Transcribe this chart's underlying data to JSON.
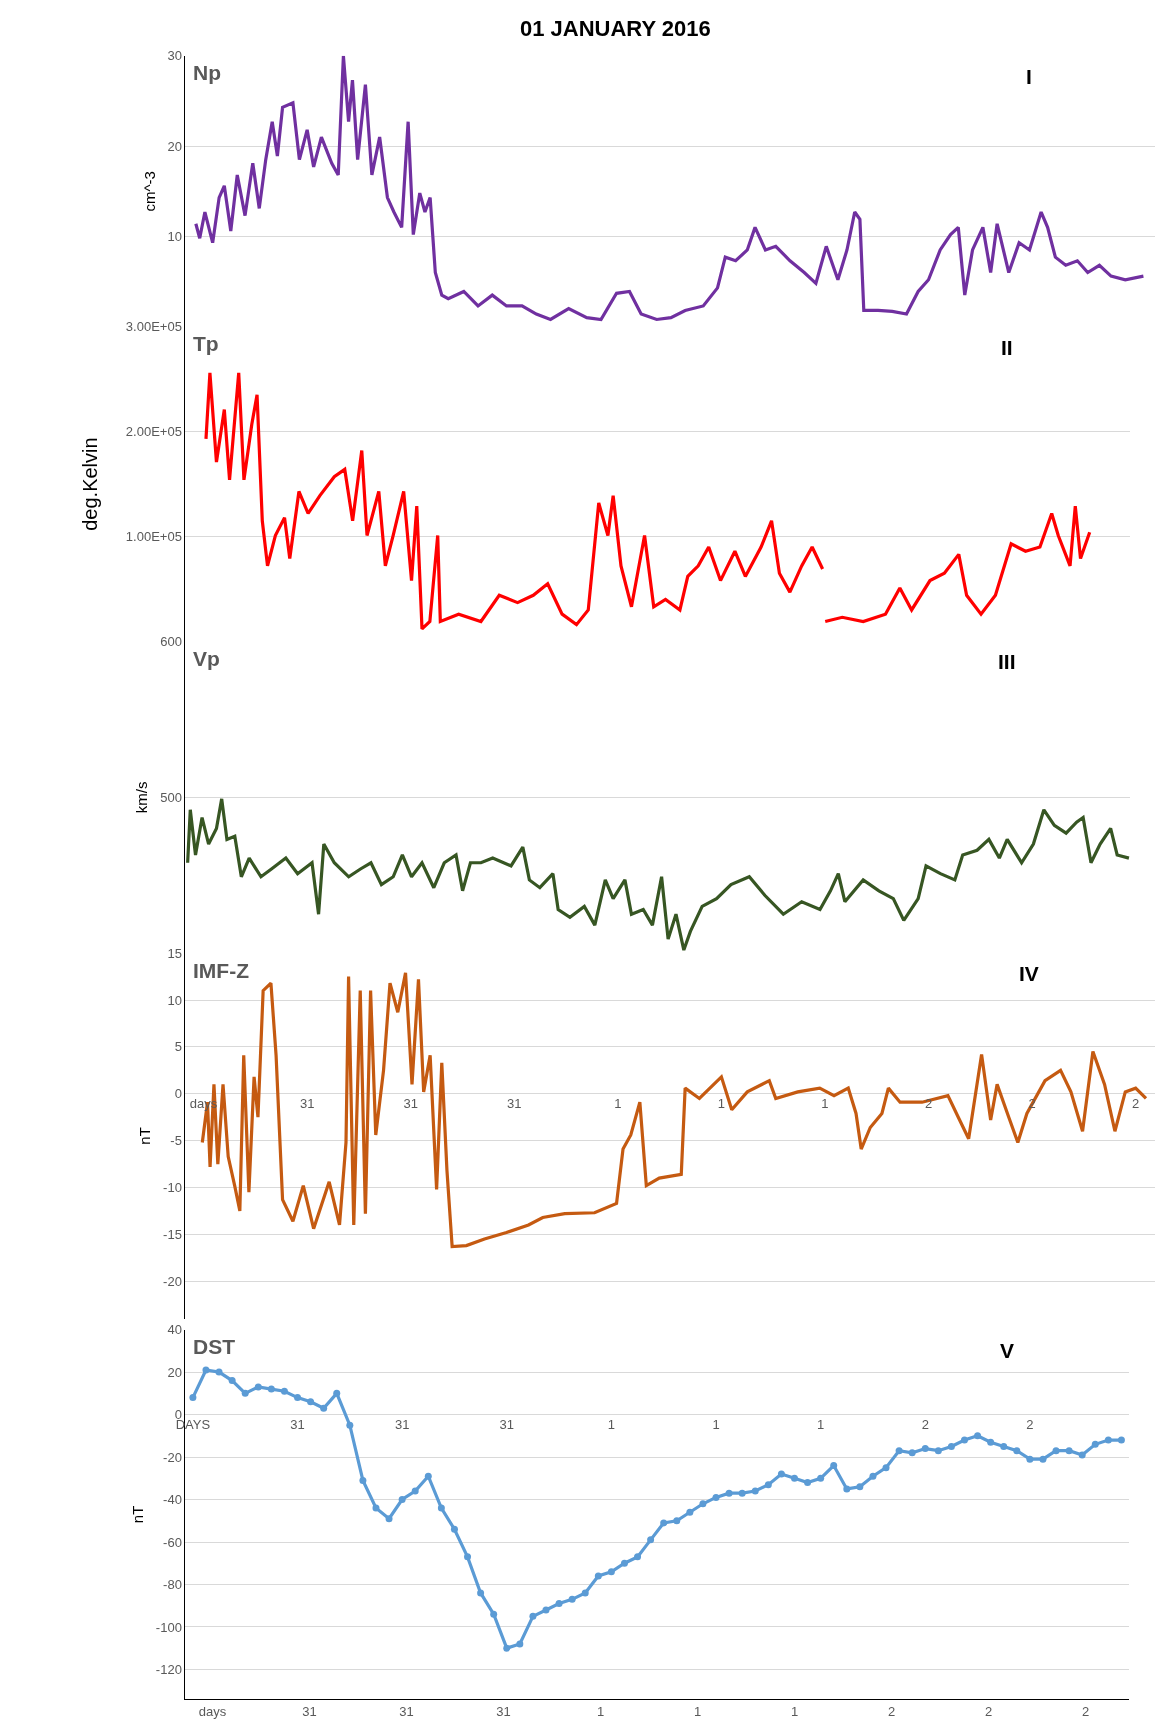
{
  "chart_data": [
    {
      "type": "line",
      "title": "01 JANUARY 2016",
      "ylabel": "cm^-3",
      "annotations": [
        "Np",
        "I"
      ],
      "grid": "y",
      "tick_labels": "y",
      "marker": "none",
      "line_style": "solid",
      "xlim": [
        "2015-12-30T14:36",
        "2016-01-02T17:30"
      ],
      "ylim": [
        0,
        30
      ],
      "yticks": [
        10,
        20,
        30
      ],
      "series": [
        {
          "color": "#7030a0",
          "x": [
            "2015-12-30T15:24",
            "2015-12-30T15:42",
            "2015-12-30T16:06",
            "2015-12-30T16:42",
            "2015-12-30T17:12",
            "2015-12-30T17:36",
            "2015-12-30T18:06",
            "2015-12-30T18:36",
            "2015-12-30T19:12",
            "2015-12-30T19:48",
            "2015-12-30T20:18",
            "2015-12-30T20:48",
            "2015-12-30T21:18",
            "2015-12-30T21:42",
            "2015-12-30T22:06",
            "2015-12-30T22:54",
            "2015-12-30T23:24",
            "2015-12-31T00:00",
            "2015-12-31T00:30",
            "2015-12-31T01:06",
            "2015-12-31T01:54",
            "2015-12-31T02:24",
            "2015-12-31T02:48",
            "2015-12-31T03:12",
            "2015-12-31T03:30",
            "2015-12-31T03:54",
            "2015-12-31T04:30",
            "2015-12-31T05:00",
            "2015-12-31T05:36",
            "2015-12-31T06:12",
            "2015-12-31T06:42",
            "2015-12-31T07:18",
            "2015-12-31T07:48",
            "2015-12-31T08:12",
            "2015-12-31T08:42",
            "2015-12-31T09:06",
            "2015-12-31T09:30",
            "2015-12-31T09:54",
            "2015-12-31T10:24",
            "2015-12-31T10:54",
            "2015-12-31T12:06",
            "2015-12-31T13:12",
            "2015-12-31T14:18",
            "2015-12-31T15:24",
            "2015-12-31T16:36",
            "2015-12-31T17:42",
            "2015-12-31T18:48",
            "2015-12-31T20:12",
            "2015-12-31T21:36",
            "2015-12-31T22:42",
            "2015-12-31T23:54",
            "2016-01-01T00:54",
            "2016-01-01T01:48",
            "2016-01-01T03:00",
            "2016-01-01T04:06",
            "2016-01-01T05:12",
            "2016-01-01T06:36",
            "2016-01-01T07:42",
            "2016-01-01T08:18",
            "2016-01-01T09:06",
            "2016-01-01T10:00",
            "2016-01-01T10:36",
            "2016-01-01T11:24",
            "2016-01-01T12:12",
            "2016-01-01T13:18",
            "2016-01-01T14:24",
            "2016-01-01T15:18",
            "2016-01-01T16:06",
            "2016-01-01T17:00",
            "2016-01-01T17:42",
            "2016-01-01T18:18",
            "2016-01-01T18:42",
            "2016-01-01T19:00",
            "2016-01-01T20:06",
            "2016-01-01T21:12",
            "2016-01-01T22:18",
            "2016-01-01T23:12",
            "2016-01-02T00:00",
            "2016-01-02T00:54",
            "2016-01-02T01:42",
            "2016-01-02T02:18",
            "2016-01-02T02:48",
            "2016-01-02T03:24",
            "2016-01-02T04:12",
            "2016-01-02T04:48",
            "2016-01-02T05:18",
            "2016-01-02T06:12",
            "2016-01-02T07:00",
            "2016-01-02T07:48",
            "2016-01-02T08:42",
            "2016-01-02T09:12",
            "2016-01-02T09:48",
            "2016-01-02T10:36",
            "2016-01-02T11:30",
            "2016-01-02T12:18",
            "2016-01-02T13:12",
            "2016-01-02T14:06",
            "2016-01-02T15:12",
            "2016-01-02T16:36"
          ],
          "values": [
            11.4,
            9.8,
            12.7,
            9.3,
            14.3,
            15.6,
            10.6,
            16.8,
            12.3,
            18.1,
            13.1,
            18.5,
            22.7,
            18.9,
            24.3,
            24.8,
            18.5,
            21.8,
            17.7,
            21.0,
            18.1,
            16.8,
            30,
            22.7,
            27.3,
            18.5,
            26.8,
            16.8,
            21.0,
            14.3,
            12.7,
            11.0,
            22.7,
            10.2,
            14.8,
            12.7,
            14.3,
            6.0,
            3.5,
            3.1,
            3.9,
            2.3,
            3.5,
            2.3,
            2.3,
            1.4,
            0.8,
            2.0,
            1.0,
            0.8,
            3.7,
            3.9,
            1.4,
            0.8,
            1.0,
            1.8,
            2.3,
            4.3,
            7.7,
            7.3,
            8.5,
            11.0,
            8.5,
            8.9,
            7.3,
            6.0,
            4.8,
            8.9,
            5.2,
            8.5,
            12.7,
            11.9,
            1.8,
            1.8,
            1.7,
            1.4,
            3.9,
            5.2,
            8.5,
            10.2,
            11.0,
            3.5,
            8.5,
            11.0,
            6.0,
            11.4,
            6.0,
            9.3,
            8.5,
            12.7,
            11.0,
            7.7,
            6.8,
            7.3,
            6.0,
            6.8,
            5.6,
            5.2,
            5.6
          ]
        }
      ]
    },
    {
      "type": "line",
      "ylabel": "deg.Kelvin",
      "annotations": [
        "Tp",
        "II"
      ],
      "grid": "y",
      "tick_labels": "y",
      "marker": "none",
      "line_style": "solid",
      "xlim": [
        "2015-12-30T15:26",
        "2016-01-02T15:36"
      ],
      "ylim": [
        0,
        300000
      ],
      "yticks": [
        {
          "value": 100000,
          "label": "1.00E+05"
        },
        {
          "value": 200000,
          "label": "2.00E+05"
        },
        {
          "value": 300000,
          "label": "3.00E+05"
        }
      ],
      "series": [
        {
          "color": "#ff0000",
          "x": [
            "2015-12-30T17:00",
            "2015-12-30T17:18",
            "2015-12-30T17:48",
            "2015-12-30T18:24",
            "2015-12-30T18:48",
            "2015-12-30T19:30",
            "2015-12-30T19:54",
            "2015-12-30T20:30",
            "2015-12-30T20:54",
            "2015-12-30T21:18",
            "2015-12-30T21:42",
            "2015-12-30T22:18",
            "2015-12-30T23:00",
            "2015-12-30T23:24",
            "2015-12-31T00:06",
            "2015-12-31T00:48",
            "2015-12-31T01:42",
            "2015-12-31T02:48",
            "2015-12-31T03:36",
            "2015-12-31T04:12",
            "2015-12-31T04:54",
            "2015-12-31T05:18",
            "2015-12-31T06:12",
            "2015-12-31T06:42",
            "2015-12-31T07:18",
            "2015-12-31T08:06",
            "2015-12-31T08:42",
            "2015-12-31T09:06",
            "2015-12-31T09:30",
            "2015-12-31T10:06",
            "2015-12-31T10:42",
            "2015-12-31T10:54",
            "2015-12-31T12:18",
            "2015-12-31T14:00",
            "2015-12-31T15:24",
            "2015-12-31T16:48",
            "2015-12-31T18:00",
            "2015-12-31T19:06",
            "2015-12-31T20:12",
            "2015-12-31T21:18",
            "2015-12-31T22:12",
            "2015-12-31T23:00",
            "2015-12-31T23:42",
            "2016-01-01T00:06",
            "2016-01-01T00:42",
            "2016-01-01T01:30",
            "2016-01-01T02:30",
            "2016-01-01T03:12",
            "2016-01-01T04:06",
            "2016-01-01T05:12",
            "2016-01-01T05:48",
            "2016-01-01T06:36",
            "2016-01-01T07:24",
            "2016-01-01T08:18",
            "2016-01-01T09:24",
            "2016-01-01T10:12",
            "2016-01-01T11:24",
            "2016-01-01T12:12",
            "2016-01-01T12:48",
            "2016-01-01T13:36",
            "2016-01-01T14:30",
            "2016-01-01T15:18",
            "2016-01-01T16:06",
            "2016-01-01T16:12",
            "2016-01-01T16:18",
            "2016-01-01T17:36",
            "2016-01-01T19:12",
            "2016-01-01T20:54",
            "2016-01-01T22:00",
            "2016-01-01T22:54",
            "2016-01-02T00:18",
            "2016-01-02T01:24",
            "2016-01-02T02:30",
            "2016-01-02T03:06",
            "2016-01-02T04:12",
            "2016-01-02T05:18",
            "2016-01-02T06:30",
            "2016-01-02T07:36",
            "2016-01-02T08:42",
            "2016-01-02T09:36",
            "2016-01-02T10:06",
            "2016-01-02T11:00",
            "2016-01-02T11:24",
            "2016-01-02T11:48",
            "2016-01-02T12:30"
          ],
          "values": [
            193000,
            256000,
            171000,
            221000,
            154000,
            256000,
            154000,
            207000,
            235000,
            115000,
            72000,
            101000,
            118000,
            79000,
            143000,
            122000,
            139000,
            157000,
            164000,
            115000,
            182000,
            101000,
            143000,
            72000,
            101000,
            143000,
            58000,
            129000,
            12000,
            19000,
            101000,
            19000,
            26000,
            19000,
            44000,
            37000,
            44000,
            55000,
            26000,
            16000,
            30000,
            132000,
            101000,
            139000,
            72000,
            33000,
            101000,
            33000,
            40000,
            30000,
            62000,
            72000,
            90000,
            58000,
            86000,
            62000,
            90000,
            115000,
            65000,
            47000,
            72000,
            90000,
            69000,
            null,
            19000,
            23000,
            19000,
            26000,
            51000,
            30000,
            58000,
            65000,
            83000,
            44000,
            26000,
            44000,
            93000,
            86000,
            90000,
            122000,
            101000,
            72000,
            129000,
            79000,
            104000
          ]
        }
      ]
    },
    {
      "type": "line",
      "ylabel": "km/s",
      "annotations": [
        "Vp",
        "III"
      ],
      "grid": "y",
      "tick_labels": "y",
      "marker": "none",
      "line_style": "solid",
      "xlim": [
        "2015-12-30T15:26",
        "2016-01-02T15:36"
      ],
      "ylim": [
        400,
        600
      ],
      "yticks": [
        500,
        600
      ],
      "series": [
        {
          "color": "#375623",
          "x": [
            "2015-12-30T15:36",
            "2015-12-30T15:48",
            "2015-12-30T16:12",
            "2015-12-30T16:42",
            "2015-12-30T17:12",
            "2015-12-30T17:48",
            "2015-12-30T18:12",
            "2015-12-30T18:36",
            "2015-12-30T19:12",
            "2015-12-30T19:42",
            "2015-12-30T20:18",
            "2015-12-30T21:12",
            "2015-12-30T22:00",
            "2015-12-30T23:06",
            "2015-12-31T00:00",
            "2015-12-31T01:06",
            "2015-12-31T01:36",
            "2015-12-31T02:00",
            "2015-12-31T02:48",
            "2015-12-31T03:54",
            "2015-12-31T04:48",
            "2015-12-31T05:36",
            "2015-12-31T06:24",
            "2015-12-31T07:18",
            "2015-12-31T08:00",
            "2015-12-31T08:42",
            "2015-12-31T09:30",
            "2015-12-31T10:24",
            "2015-12-31T11:12",
            "2015-12-31T12:06",
            "2015-12-31T12:36",
            "2015-12-31T13:12",
            "2015-12-31T14:00",
            "2015-12-31T14:54",
            "2015-12-31T16:18",
            "2015-12-31T17:12",
            "2015-12-31T17:42",
            "2015-12-31T18:30",
            "2015-12-31T19:30",
            "2015-12-31T19:54",
            "2015-12-31T20:48",
            "2015-12-31T21:54",
            "2015-12-31T22:42",
            "2015-12-31T23:30",
            "2016-01-01T00:06",
            "2016-01-01T01:00",
            "2016-01-01T01:30",
            "2016-01-01T02:24",
            "2016-01-01T03:06",
            "2016-01-01T03:48",
            "2016-01-01T04:18",
            "2016-01-01T04:54",
            "2016-01-01T05:30",
            "2016-01-01T06:00",
            "2016-01-01T06:54",
            "2016-01-01T08:00",
            "2016-01-01T09:06",
            "2016-01-01T10:30",
            "2016-01-01T11:42",
            "2016-01-01T13:06",
            "2016-01-01T14:30",
            "2016-01-01T15:54",
            "2016-01-01T16:42",
            "2016-01-01T17:18",
            "2016-01-01T17:48",
            "2016-01-01T19:12",
            "2016-01-01T20:24",
            "2016-01-01T21:30",
            "2016-01-01T22:18",
            "2016-01-01T23:24",
            "2016-01-02T00:00",
            "2016-01-02T01:06",
            "2016-01-02T02:12",
            "2016-01-02T02:48",
            "2016-01-02T03:54",
            "2016-01-02T04:48",
            "2016-01-02T05:36",
            "2016-01-02T06:12",
            "2016-01-02T07:18",
            "2016-01-02T08:12",
            "2016-01-02T09:00",
            "2016-01-02T09:48",
            "2016-01-02T10:42",
            "2016-01-02T11:30",
            "2016-01-02T12:00",
            "2016-01-02T12:36",
            "2016-01-02T13:18",
            "2016-01-02T14:06",
            "2016-01-02T14:36",
            "2016-01-02T15:30"
          ],
          "values": [
            458,
            492,
            463,
            487,
            470,
            480,
            499,
            473,
            475,
            449,
            461,
            449,
            454,
            461,
            451,
            458,
            425,
            470,
            458,
            449,
            454,
            458,
            444,
            449,
            463,
            449,
            458,
            442,
            458,
            463,
            440,
            458,
            458,
            461,
            456,
            468,
            447,
            442,
            451,
            428,
            423,
            430,
            418,
            447,
            435,
            447,
            425,
            428,
            418,
            449,
            409,
            425,
            402,
            414,
            430,
            435,
            444,
            449,
            437,
            425,
            433,
            428,
            440,
            451,
            433,
            447,
            440,
            435,
            421,
            435,
            456,
            451,
            447,
            463,
            466,
            473,
            461,
            473,
            458,
            470,
            492,
            482,
            477,
            484,
            487,
            458,
            470,
            480,
            463,
            461
          ]
        }
      ]
    },
    {
      "type": "line",
      "ylabel": "nT",
      "annotations": [
        "IMF-Z",
        "IV"
      ],
      "grid": "y",
      "marker": "none",
      "line_style": "solid",
      "xlim": [
        "2015-12-30T14:36",
        "2016-01-02T17:30"
      ],
      "xticks": [
        {
          "value": "2015-12-30T16:00",
          "label": "days"
        },
        {
          "value": "2015-12-31T00:00",
          "label": "31"
        },
        {
          "value": "2015-12-31T08:00",
          "label": "31"
        },
        {
          "value": "2015-12-31T16:00",
          "label": "31"
        },
        {
          "value": "2016-01-01T00:00",
          "label": "1"
        },
        {
          "value": "2016-01-01T08:00",
          "label": "1"
        },
        {
          "value": "2016-01-01T16:00",
          "label": "1"
        },
        {
          "value": "2016-01-02T00:00",
          "label": "2"
        },
        {
          "value": "2016-01-02T08:00",
          "label": "2"
        },
        {
          "value": "2016-01-02T16:00",
          "label": "2"
        }
      ],
      "ylim": [
        -24,
        15
      ],
      "yticks": [
        -20,
        -15,
        -10,
        -5,
        0,
        5,
        10,
        15
      ],
      "series": [
        {
          "color": "#c55a11",
          "x": [
            "2015-12-30T15:54",
            "2015-12-30T16:18",
            "2015-12-30T16:30",
            "2015-12-30T16:48",
            "2015-12-30T17:06",
            "2015-12-30T17:30",
            "2015-12-30T17:54",
            "2015-12-30T18:24",
            "2015-12-30T18:48",
            "2015-12-30T19:06",
            "2015-12-30T19:30",
            "2015-12-30T19:54",
            "2015-12-30T20:12",
            "2015-12-30T20:36",
            "2015-12-30T21:12",
            "2015-12-30T21:36",
            "2015-12-30T22:06",
            "2015-12-30T22:54",
            "2015-12-30T23:42",
            "2015-12-31T00:30",
            "2015-12-31T01:42",
            "2015-12-31T02:30",
            "2015-12-31T03:00",
            "2015-12-31T03:12",
            "2015-12-31T03:36",
            "2015-12-31T04:06",
            "2015-12-31T04:30",
            "2015-12-31T04:54",
            "2015-12-31T05:18",
            "2015-12-31T05:54",
            "2015-12-31T06:24",
            "2015-12-31T07:00",
            "2015-12-31T07:36",
            "2015-12-31T08:06",
            "2015-12-31T08:36",
            "2015-12-31T09:00",
            "2015-12-31T09:30",
            "2015-12-31T10:00",
            "2015-12-31T10:24",
            "2015-12-31T10:48",
            "2015-12-31T11:12",
            "2015-12-31T12:18",
            "2015-12-31T13:42",
            "2015-12-31T15:24",
            "2015-12-31T17:06",
            "2015-12-31T18:12",
            "2015-12-31T19:54",
            "2015-12-31T22:12",
            "2015-12-31T23:54",
            "2016-01-01T00:24",
            "2016-01-01T01:00",
            "2016-01-01T01:42",
            "2016-01-01T02:12",
            "2016-01-01T03:12",
            "2016-01-01T04:54",
            "2016-01-01T05:12",
            "2016-01-01T06:18",
            "2016-01-01T08:00",
            "2016-01-01T08:48",
            "2016-01-01T10:00",
            "2016-01-01T11:42",
            "2016-01-01T12:12",
            "2016-01-01T13:54",
            "2016-01-01T15:36",
            "2016-01-01T16:42",
            "2016-01-01T17:48",
            "2016-01-01T18:24",
            "2016-01-01T18:48",
            "2016-01-01T19:30",
            "2016-01-01T20:24",
            "2016-01-01T20:54",
            "2016-01-01T21:48",
            "2016-01-01T23:30",
            "2016-01-02T01:30",
            "2016-01-02T02:18",
            "2016-01-02T03:06",
            "2016-01-02T04:06",
            "2016-01-02T04:48",
            "2016-01-02T05:18",
            "2016-01-02T06:12",
            "2016-01-02T06:54",
            "2016-01-02T07:36",
            "2016-01-02T09:00",
            "2016-01-02T10:12",
            "2016-01-02T11:00",
            "2016-01-02T11:54",
            "2016-01-02T12:42",
            "2016-01-02T13:36",
            "2016-01-02T14:24",
            "2016-01-02T15:12",
            "2016-01-02T16:00",
            "2016-01-02T16:48"
          ],
          "values": [
            -5.2,
            -0.9,
            -7.8,
            1.0,
            -7.5,
            1.0,
            -6.7,
            -9.8,
            -12.5,
            4.1,
            -10.5,
            1.8,
            -2.5,
            11.0,
            11.8,
            4.1,
            -11.3,
            -13.6,
            -9.8,
            -14.4,
            -9.4,
            -14.0,
            -5.2,
            12.5,
            -14.0,
            11.0,
            -12.8,
            11.0,
            -4.4,
            2.5,
            11.8,
            8.7,
            12.9,
            1.0,
            12.2,
            0.2,
            4.1,
            -10.2,
            3.3,
            -8.2,
            -16.3,
            -16.2,
            -15.5,
            -14.8,
            -14.0,
            -13.2,
            -12.8,
            -12.7,
            -11.7,
            -5.9,
            -4.4,
            -0.9,
            -9.8,
            -9.0,
            -8.6,
            0.6,
            -0.5,
            1.8,
            -1.7,
            0.2,
            1.4,
            -0.5,
            0.2,
            0.6,
            -0.2,
            0.6,
            -2.1,
            -5.9,
            -3.6,
            -2.1,
            0.6,
            -0.9,
            -0.9,
            -0.2,
            -2.5,
            -4.8,
            4.2,
            -2.8,
            1.0,
            -2.5,
            -5.2,
            -2.1,
            1.4,
            2.5,
            0.2,
            -4.0,
            4.5,
            1.0,
            -4.0,
            0.2,
            0.6,
            -0.5
          ]
        }
      ]
    },
    {
      "type": "line",
      "ylabel": "nT",
      "annotations": [
        "DST",
        "V"
      ],
      "grid": "y",
      "marker": "circle",
      "line_style": "solid",
      "xlim": [
        "2015-12-30T15:26",
        "2016-01-02T15:36"
      ],
      "xticks": [
        {
          "value": "2015-12-30T16:00",
          "label": "DAYS"
        },
        {
          "value": "2015-12-31T00:00",
          "label": "31"
        },
        {
          "value": "2015-12-31T08:00",
          "label": "31"
        },
        {
          "value": "2015-12-31T16:00",
          "label": "31"
        },
        {
          "value": "2016-01-01T00:00",
          "label": "1"
        },
        {
          "value": "2016-01-01T08:00",
          "label": "1"
        },
        {
          "value": "2016-01-01T16:00",
          "label": "1"
        },
        {
          "value": "2016-01-02T00:00",
          "label": "2"
        },
        {
          "value": "2016-01-02T08:00",
          "label": "2"
        }
      ],
      "x2lim": [
        "2015-12-30T13:46",
        "2016-01-02T19:36"
      ],
      "x2ticks": [
        {
          "value": "2015-12-30T16:00",
          "label": "days"
        },
        {
          "value": "2015-12-31T00:00",
          "label": "31"
        },
        {
          "value": "2015-12-31T08:00",
          "label": "31"
        },
        {
          "value": "2015-12-31T16:00",
          "label": "31"
        },
        {
          "value": "2016-01-01T00:00",
          "label": "1"
        },
        {
          "value": "2016-01-01T08:00",
          "label": "1"
        },
        {
          "value": "2016-01-01T16:00",
          "label": "1"
        },
        {
          "value": "2016-01-02T00:00",
          "label": "2"
        },
        {
          "value": "2016-01-02T08:00",
          "label": "2"
        },
        {
          "value": "2016-01-02T16:00",
          "label": "2"
        }
      ],
      "ylim": [
        -134,
        40
      ],
      "yticks": [
        -120,
        -100,
        -80,
        -60,
        -40,
        -20,
        0,
        20,
        40
      ],
      "x": [
        "2015-12-30T16:00",
        "2015-12-30T17:00",
        "2015-12-30T18:00",
        "2015-12-30T19:00",
        "2015-12-30T20:00",
        "2015-12-30T21:00",
        "2015-12-30T22:00",
        "2015-12-30T23:00",
        "2015-12-31T00:00",
        "2015-12-31T01:00",
        "2015-12-31T02:00",
        "2015-12-31T03:00",
        "2015-12-31T04:00",
        "2015-12-31T05:00",
        "2015-12-31T06:00",
        "2015-12-31T07:00",
        "2015-12-31T08:00",
        "2015-12-31T09:00",
        "2015-12-31T10:00",
        "2015-12-31T11:00",
        "2015-12-31T12:00",
        "2015-12-31T13:00",
        "2015-12-31T14:00",
        "2015-12-31T15:00",
        "2015-12-31T16:00",
        "2015-12-31T17:00",
        "2015-12-31T18:00",
        "2015-12-31T19:00",
        "2015-12-31T20:00",
        "2015-12-31T21:00",
        "2015-12-31T22:00",
        "2015-12-31T23:00",
        "2016-01-01T00:00",
        "2016-01-01T01:00",
        "2016-01-01T02:00",
        "2016-01-01T03:00",
        "2016-01-01T04:00",
        "2016-01-01T05:00",
        "2016-01-01T06:00",
        "2016-01-01T07:00",
        "2016-01-01T08:00",
        "2016-01-01T09:00",
        "2016-01-01T10:00",
        "2016-01-01T11:00",
        "2016-01-01T12:00",
        "2016-01-01T13:00",
        "2016-01-01T14:00",
        "2016-01-01T15:00",
        "2016-01-01T16:00",
        "2016-01-01T17:00",
        "2016-01-01T18:00",
        "2016-01-01T19:00",
        "2016-01-01T20:00",
        "2016-01-01T21:00",
        "2016-01-01T22:00",
        "2016-01-01T23:00",
        "2016-01-02T00:00",
        "2016-01-02T01:00",
        "2016-01-02T02:00",
        "2016-01-02T03:00",
        "2016-01-02T04:00",
        "2016-01-02T05:00",
        "2016-01-02T06:00",
        "2016-01-02T07:00",
        "2016-01-02T08:00",
        "2016-01-02T09:00",
        "2016-01-02T10:00",
        "2016-01-02T11:00",
        "2016-01-02T12:00",
        "2016-01-02T13:00",
        "2016-01-02T14:00",
        "2016-01-02T15:00"
      ],
      "series": [
        {
          "color": "#5b9bd5",
          "values": [
            8,
            21,
            20,
            16,
            10,
            13,
            12,
            11,
            8,
            6,
            3,
            10,
            -5,
            -31,
            -44,
            -49,
            -40,
            -36,
            -29,
            -44,
            -54,
            -67,
            -84,
            -94,
            -110,
            -108,
            -95,
            -92,
            -89,
            -87,
            -84,
            -76,
            -74,
            -70,
            -67,
            -59,
            -51,
            -50,
            -46,
            -42,
            -39,
            -37,
            -37,
            -36,
            -33,
            -28,
            -30,
            -32,
            -30,
            -24,
            -35,
            -34,
            -29,
            -25,
            -17,
            -18,
            -16,
            -17,
            -15,
            -12,
            -10,
            -13,
            -15,
            -17,
            -21,
            -21,
            -17,
            -17,
            -19,
            -14,
            -12,
            -12
          ]
        }
      ]
    }
  ]
}
